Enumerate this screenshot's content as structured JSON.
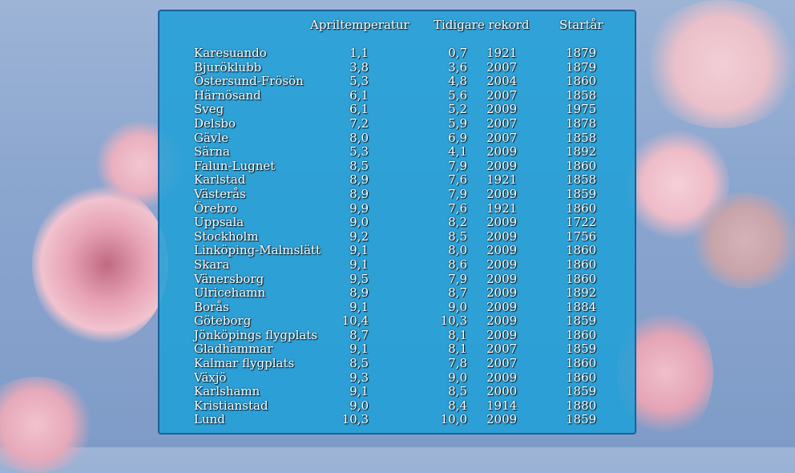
{
  "headers": {
    "april": "Apriltemperatur",
    "record": "Tidigare rekord",
    "start": "Startår"
  },
  "rows": [
    {
      "station": "Karesuando",
      "april": "1,1",
      "record": "0,7",
      "record_year": "1921",
      "start_year": "1879"
    },
    {
      "station": "Bjuröklubb",
      "april": "3,8",
      "record": "3,6",
      "record_year": "2007",
      "start_year": "1879"
    },
    {
      "station": "Östersund-Frösön",
      "april": "5,3",
      "record": "4,8",
      "record_year": "2004",
      "start_year": "1860"
    },
    {
      "station": "Härnösand",
      "april": "6,1",
      "record": "5,6",
      "record_year": "2007",
      "start_year": "1858"
    },
    {
      "station": "Sveg",
      "april": "6,1",
      "record": "5,2",
      "record_year": "2009",
      "start_year": "1975"
    },
    {
      "station": "Delsbo",
      "april": "7,2",
      "record": "5,9",
      "record_year": "2007",
      "start_year": "1878"
    },
    {
      "station": "Gävle",
      "april": "8,0",
      "record": "6,9",
      "record_year": "2007",
      "start_year": "1858"
    },
    {
      "station": "Särna",
      "april": "5,3",
      "record": "4,1",
      "record_year": "2009",
      "start_year": "1892"
    },
    {
      "station": "Falun-Lugnet",
      "april": "8,5",
      "record": "7,9",
      "record_year": "2009",
      "start_year": "1860"
    },
    {
      "station": "Karlstad",
      "april": "8,9",
      "record": "7,6",
      "record_year": "1921",
      "start_year": "1858"
    },
    {
      "station": "Västerås",
      "april": "8,9",
      "record": "7,9",
      "record_year": "2009",
      "start_year": "1859"
    },
    {
      "station": "Örebro",
      "april": "9,9",
      "record": "7,6",
      "record_year": "1921",
      "start_year": "1860"
    },
    {
      "station": "Uppsala",
      "april": "9,0",
      "record": "8,2",
      "record_year": "2009",
      "start_year": "1722"
    },
    {
      "station": "Stockholm",
      "april": "9,2",
      "record": "8,5",
      "record_year": "2009",
      "start_year": "1756"
    },
    {
      "station": "Linköping-Malmslätt",
      "april": "9,1",
      "record": "8,0",
      "record_year": "2009",
      "start_year": "1860"
    },
    {
      "station": "Skara",
      "april": "9,1",
      "record": "8,6",
      "record_year": "2009",
      "start_year": "1860"
    },
    {
      "station": "Vänersborg",
      "april": "9,5",
      "record": "7,9",
      "record_year": "2009",
      "start_year": "1860"
    },
    {
      "station": "Ulricehamn",
      "april": "8,9",
      "record": "8,7",
      "record_year": "2009",
      "start_year": "1892"
    },
    {
      "station": "Borås",
      "april": "9,1",
      "record": "9,0",
      "record_year": "2009",
      "start_year": "1884"
    },
    {
      "station": "Göteborg",
      "april": "10,4",
      "record": "10,3",
      "record_year": "2009",
      "start_year": "1859"
    },
    {
      "station": "Jönköpings flygplats",
      "april": "8,7",
      "record": "8,1",
      "record_year": "2009",
      "start_year": "1860"
    },
    {
      "station": "Gladhammar",
      "april": "9,1",
      "record": "8,1",
      "record_year": "2007",
      "start_year": "1859"
    },
    {
      "station": "Kalmar flygplats",
      "april": "8,5",
      "record": "7,8",
      "record_year": "2007",
      "start_year": "1860"
    },
    {
      "station": "Växjö",
      "april": "9,3",
      "record": "9,0",
      "record_year": "2009",
      "start_year": "1860"
    },
    {
      "station": "Karlshamn",
      "april": "9,1",
      "record": "8,5",
      "record_year": "2000",
      "start_year": "1859"
    },
    {
      "station": "Kristianstad",
      "april": "9,0",
      "record": "8,4",
      "record_year": "1914",
      "start_year": "1880"
    },
    {
      "station": "Lund",
      "april": "10,3",
      "record": "10,0",
      "record_year": "2009",
      "start_year": "1859"
    }
  ]
}
